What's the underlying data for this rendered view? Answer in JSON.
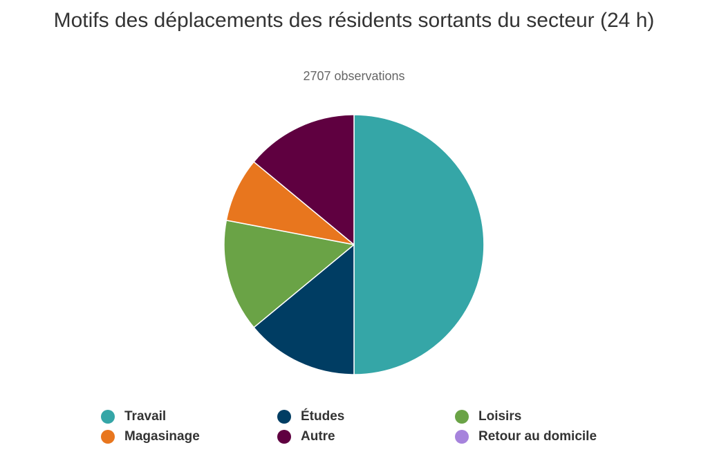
{
  "chart_data": {
    "type": "pie",
    "title": "Motifs des déplacements des résidents sortants du secteur (24 h)",
    "subtitle": "2707 observations",
    "slices": [
      {
        "name": "Travail",
        "value": 50,
        "color": "#35a6a7"
      },
      {
        "name": "Études",
        "value": 14,
        "color": "#003d63"
      },
      {
        "name": "Loisirs",
        "value": 14,
        "color": "#6aa346"
      },
      {
        "name": "Magasinage",
        "value": 8,
        "color": "#e8761e"
      },
      {
        "name": "Autre",
        "value": 14,
        "color": "#5f0040"
      },
      {
        "name": "Retour au domicile",
        "value": 0,
        "color": "#a683dc"
      }
    ],
    "legend_position": "bottom"
  }
}
